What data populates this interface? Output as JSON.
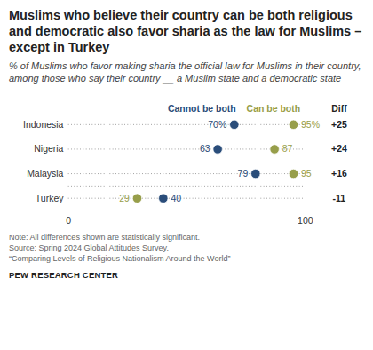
{
  "chart_data": {
    "type": "dot",
    "title": "Muslims who believe their country can be both religious and democratic also favor sharia as the law for Muslims – except in Turkey",
    "subtitle": "% of Muslims who favor making sharia the official law for Muslims in their country, among those who say their country __ a Muslim state and a democratic state",
    "categories": [
      "Indonesia",
      "Nigeria",
      "Malaysia",
      "Turkey"
    ],
    "series": [
      {
        "name": "Cannot be both",
        "color": "#2a4d7a",
        "values": [
          70,
          63,
          79,
          40
        ],
        "value_labels": [
          "70%",
          "63",
          "79",
          "40"
        ]
      },
      {
        "name": "Can be both",
        "color": "#979e4a",
        "values": [
          95,
          87,
          95,
          29
        ],
        "value_labels": [
          "95%",
          "87",
          "95",
          "29"
        ]
      }
    ],
    "diff": {
      "label": "Diff",
      "values": [
        25,
        24,
        16,
        -11
      ],
      "value_labels": [
        "+25",
        "+24",
        "+16",
        "-11"
      ]
    },
    "xlim": [
      0,
      100
    ],
    "xticks": [
      0,
      100
    ],
    "data_labels": true,
    "legend": "top",
    "notes": [
      "Note: All differences shown are statistically significant.",
      "Source: Spring 2024 Global Attitudes Survey.",
      "“Comparing Levels of Religious Nationalism Around the World”"
    ],
    "source": "PEW RESEARCH CENTER"
  }
}
